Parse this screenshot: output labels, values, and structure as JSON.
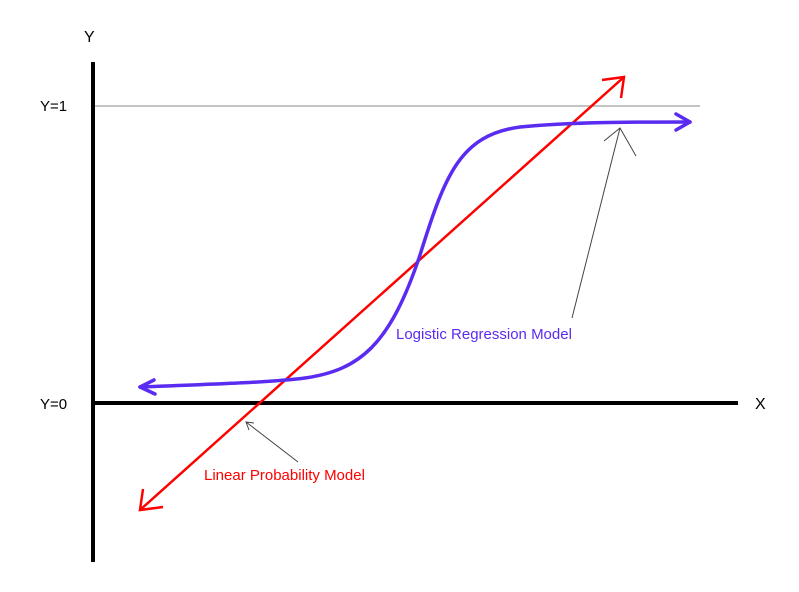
{
  "diagram": {
    "y_axis_label": "Y",
    "x_axis_label": "X",
    "y_one_label": "Y=1",
    "y_zero_label": "Y=0",
    "logistic_label": "Logistic Regression Model",
    "linear_label": "Linear Probability Model"
  },
  "colors": {
    "axes": "#000000",
    "reference_line": "#888888",
    "logistic_curve": "#5a2bf0",
    "linear_line": "#ff0000",
    "pointer_arrow": "#444444"
  }
}
